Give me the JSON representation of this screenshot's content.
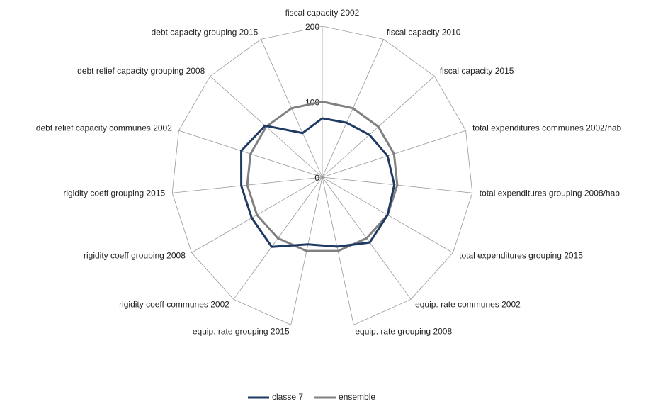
{
  "chart_data": {
    "type": "radar",
    "categories": [
      "fiscal capacity 2002",
      "fiscal capacity 2010",
      "fiscal capacity 2015",
      "total expenditures communes 2002/hab",
      "total expenditures grouping 2008/hab",
      "total expenditures grouping 2015",
      "equip. rate communes 2002",
      "equip. rate grouping 2008",
      "equip. rate grouping 2015",
      "rigidity coeff communes 2002",
      "rigidity coeff grouping 2008",
      "rigidity coeff grouping 2015",
      "debt relief capacity communes 2002",
      "debt relief capacity grouping 2008",
      "debt capacity grouping 2015"
    ],
    "series": [
      {
        "name": "classe 7",
        "color": "#1f3b63",
        "values": [
          78,
          79,
          84,
          91,
          96,
          100,
          107,
          94,
          91,
          114,
          108,
          108,
          113,
          102,
          64
        ]
      },
      {
        "name": "ensemble",
        "color": "#808080",
        "values": [
          100,
          100,
          100,
          100,
          100,
          100,
          100,
          100,
          100,
          100,
          100,
          100,
          100,
          100,
          100
        ]
      }
    ],
    "rlim": [
      0,
      200
    ],
    "rticks": [
      0,
      100,
      200
    ],
    "legend": "bottom"
  }
}
